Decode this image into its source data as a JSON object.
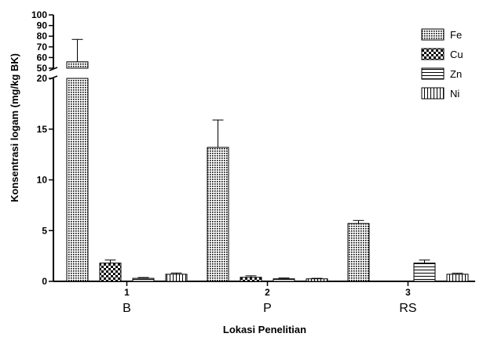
{
  "chart_data": {
    "type": "bar",
    "title": "",
    "xlabel": "Lokasi Penelitian",
    "ylabel": "Konsentrasi logam (mg/kg BK)",
    "category_numbers": [
      "1",
      "2",
      "3"
    ],
    "categories": [
      "B",
      "P",
      "RS"
    ],
    "y_axis": {
      "broken": true,
      "lower_range": [
        0,
        20
      ],
      "upper_range": [
        50,
        100
      ],
      "lower_ticks": [
        0,
        5,
        10,
        15,
        20
      ],
      "upper_ticks": [
        50,
        60,
        70,
        80,
        90,
        100
      ],
      "tick_labels": {
        "0": "0",
        "5": "5",
        "10": "10",
        "15": "15",
        "20": "20",
        "50": "50",
        "60": "60",
        "70": "70",
        "80": "80",
        "90": "90",
        "100": "100"
      }
    },
    "series": [
      {
        "name": "Fe",
        "pattern": "dots",
        "values": [
          56,
          13.2,
          5.7
        ],
        "errors": [
          21,
          2.7,
          0.3
        ]
      },
      {
        "name": "Cu",
        "pattern": "checker",
        "values": [
          1.8,
          0.4,
          0
        ],
        "errors": [
          0.3,
          0.15,
          0
        ]
      },
      {
        "name": "Zn",
        "pattern": "hlines",
        "values": [
          0.3,
          0.25,
          1.8
        ],
        "errors": [
          0.08,
          0.08,
          0.3
        ]
      },
      {
        "name": "Ni",
        "pattern": "vlines",
        "values": [
          0.7,
          0.25,
          0.7
        ],
        "errors": [
          0.12,
          0.05,
          0.1
        ]
      }
    ],
    "legend_position": "top-right",
    "grid": false
  }
}
